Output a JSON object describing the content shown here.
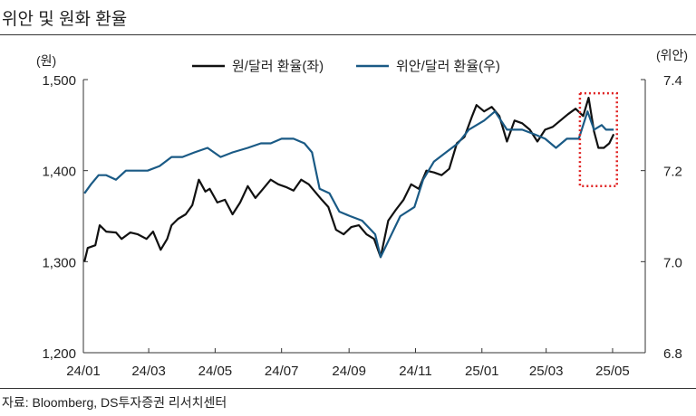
{
  "title": "위안 및 원화 환율",
  "source": "자료: Bloomberg, DS투자증권 리서치센터",
  "chart_data": {
    "type": "line",
    "title": "위안 및 원화 환율",
    "left_axis": {
      "unit": "(원)",
      "ylim": [
        1200,
        1500
      ],
      "ticks": [
        1200,
        1300,
        1400,
        1500
      ],
      "tick_labels": [
        "1,200",
        "1,300",
        "1,400",
        "1,500"
      ]
    },
    "right_axis": {
      "unit": "(위안)",
      "ylim": [
        6.8,
        7.4
      ],
      "ticks": [
        6.8,
        7.0,
        7.2,
        7.4
      ],
      "tick_labels": [
        "6.8",
        "7.0",
        "7.2",
        "7.4"
      ]
    },
    "x_axis": {
      "range": [
        "2024-01-01",
        "2025-05-31"
      ],
      "ticks": [
        "2024-01-01",
        "2024-03-01",
        "2024-05-01",
        "2024-07-01",
        "2024-09-01",
        "2024-11-01",
        "2025-01-01",
        "2025-03-01",
        "2025-05-01"
      ],
      "tick_labels": [
        "24/01",
        "24/03",
        "24/05",
        "24/07",
        "24/09",
        "24/11",
        "25/01",
        "25/03",
        "25/05"
      ]
    },
    "legend_position": "top",
    "grid": false,
    "annotation": {
      "type": "dotted-box",
      "color": "#e02020",
      "x_range": [
        "2025-04-01",
        "2025-05-05"
      ],
      "y_range": [
        1383,
        1485
      ]
    },
    "series": [
      {
        "name": "원/달러 환율(좌)",
        "axis": "left",
        "color": "#111111",
        "points": [
          [
            "2024-01-02",
            1300
          ],
          [
            "2024-01-05",
            1315
          ],
          [
            "2024-01-12",
            1318
          ],
          [
            "2024-01-16",
            1340
          ],
          [
            "2024-01-22",
            1333
          ],
          [
            "2024-01-31",
            1332
          ],
          [
            "2024-02-05",
            1325
          ],
          [
            "2024-02-13",
            1332
          ],
          [
            "2024-02-20",
            1330
          ],
          [
            "2024-02-28",
            1325
          ],
          [
            "2024-03-05",
            1333
          ],
          [
            "2024-03-12",
            1313
          ],
          [
            "2024-03-18",
            1325
          ],
          [
            "2024-03-22",
            1340
          ],
          [
            "2024-03-28",
            1347
          ],
          [
            "2024-04-04",
            1352
          ],
          [
            "2024-04-10",
            1362
          ],
          [
            "2024-04-16",
            1390
          ],
          [
            "2024-04-22",
            1377
          ],
          [
            "2024-04-26",
            1380
          ],
          [
            "2024-05-03",
            1365
          ],
          [
            "2024-05-10",
            1368
          ],
          [
            "2024-05-17",
            1352
          ],
          [
            "2024-05-24",
            1365
          ],
          [
            "2024-05-31",
            1383
          ],
          [
            "2024-06-07",
            1370
          ],
          [
            "2024-06-14",
            1380
          ],
          [
            "2024-06-21",
            1390
          ],
          [
            "2024-06-28",
            1385
          ],
          [
            "2024-07-05",
            1382
          ],
          [
            "2024-07-12",
            1378
          ],
          [
            "2024-07-19",
            1390
          ],
          [
            "2024-07-26",
            1385
          ],
          [
            "2024-08-02",
            1375
          ],
          [
            "2024-08-07",
            1368
          ],
          [
            "2024-08-13",
            1360
          ],
          [
            "2024-08-20",
            1335
          ],
          [
            "2024-08-27",
            1330
          ],
          [
            "2024-09-03",
            1338
          ],
          [
            "2024-09-10",
            1340
          ],
          [
            "2024-09-17",
            1330
          ],
          [
            "2024-09-24",
            1325
          ],
          [
            "2024-09-30",
            1305
          ],
          [
            "2024-10-07",
            1345
          ],
          [
            "2024-10-14",
            1357
          ],
          [
            "2024-10-21",
            1368
          ],
          [
            "2024-10-28",
            1385
          ],
          [
            "2024-11-04",
            1380
          ],
          [
            "2024-11-11",
            1400
          ],
          [
            "2024-11-18",
            1398
          ],
          [
            "2024-11-25",
            1395
          ],
          [
            "2024-12-02",
            1402
          ],
          [
            "2024-12-09",
            1430
          ],
          [
            "2024-12-16",
            1437
          ],
          [
            "2024-12-23",
            1460
          ],
          [
            "2024-12-27",
            1472
          ],
          [
            "2025-01-03",
            1465
          ],
          [
            "2025-01-10",
            1470
          ],
          [
            "2025-01-17",
            1460
          ],
          [
            "2025-01-24",
            1432
          ],
          [
            "2025-01-31",
            1455
          ],
          [
            "2025-02-07",
            1452
          ],
          [
            "2025-02-14",
            1445
          ],
          [
            "2025-02-21",
            1432
          ],
          [
            "2025-02-28",
            1445
          ],
          [
            "2025-03-07",
            1448
          ],
          [
            "2025-03-14",
            1455
          ],
          [
            "2025-03-21",
            1462
          ],
          [
            "2025-03-28",
            1468
          ],
          [
            "2025-04-04",
            1460
          ],
          [
            "2025-04-09",
            1480
          ],
          [
            "2025-04-14",
            1443
          ],
          [
            "2025-04-18",
            1425
          ],
          [
            "2025-04-23",
            1425
          ],
          [
            "2025-04-28",
            1430
          ],
          [
            "2025-05-02",
            1440
          ]
        ]
      },
      {
        "name": "위안/달러 환율(우)",
        "axis": "right",
        "color": "#1a5a85",
        "points": [
          [
            "2024-01-02",
            7.15
          ],
          [
            "2024-01-08",
            7.17
          ],
          [
            "2024-01-15",
            7.19
          ],
          [
            "2024-01-22",
            7.19
          ],
          [
            "2024-01-31",
            7.18
          ],
          [
            "2024-02-09",
            7.2
          ],
          [
            "2024-02-20",
            7.2
          ],
          [
            "2024-02-29",
            7.2
          ],
          [
            "2024-03-11",
            7.21
          ],
          [
            "2024-03-22",
            7.23
          ],
          [
            "2024-04-01",
            7.23
          ],
          [
            "2024-04-12",
            7.24
          ],
          [
            "2024-04-24",
            7.25
          ],
          [
            "2024-05-06",
            7.23
          ],
          [
            "2024-05-17",
            7.24
          ],
          [
            "2024-05-31",
            7.25
          ],
          [
            "2024-06-12",
            7.26
          ],
          [
            "2024-06-21",
            7.26
          ],
          [
            "2024-07-01",
            7.27
          ],
          [
            "2024-07-12",
            7.27
          ],
          [
            "2024-07-22",
            7.26
          ],
          [
            "2024-07-29",
            7.24
          ],
          [
            "2024-08-05",
            7.16
          ],
          [
            "2024-08-14",
            7.15
          ],
          [
            "2024-08-23",
            7.11
          ],
          [
            "2024-09-02",
            7.1
          ],
          [
            "2024-09-13",
            7.09
          ],
          [
            "2024-09-25",
            7.06
          ],
          [
            "2024-09-30",
            7.01
          ],
          [
            "2024-10-08",
            7.05
          ],
          [
            "2024-10-18",
            7.1
          ],
          [
            "2024-10-31",
            7.12
          ],
          [
            "2024-11-08",
            7.18
          ],
          [
            "2024-11-18",
            7.22
          ],
          [
            "2024-11-29",
            7.24
          ],
          [
            "2024-12-10",
            7.26
          ],
          [
            "2024-12-20",
            7.29
          ],
          [
            "2025-01-03",
            7.31
          ],
          [
            "2025-01-13",
            7.33
          ],
          [
            "2025-01-24",
            7.29
          ],
          [
            "2025-02-07",
            7.29
          ],
          [
            "2025-02-18",
            7.28
          ],
          [
            "2025-02-28",
            7.27
          ],
          [
            "2025-03-10",
            7.25
          ],
          [
            "2025-03-20",
            7.27
          ],
          [
            "2025-03-31",
            7.27
          ],
          [
            "2025-04-08",
            7.33
          ],
          [
            "2025-04-14",
            7.29
          ],
          [
            "2025-04-21",
            7.3
          ],
          [
            "2025-04-25",
            7.29
          ],
          [
            "2025-05-02",
            7.29
          ]
        ]
      }
    ]
  }
}
